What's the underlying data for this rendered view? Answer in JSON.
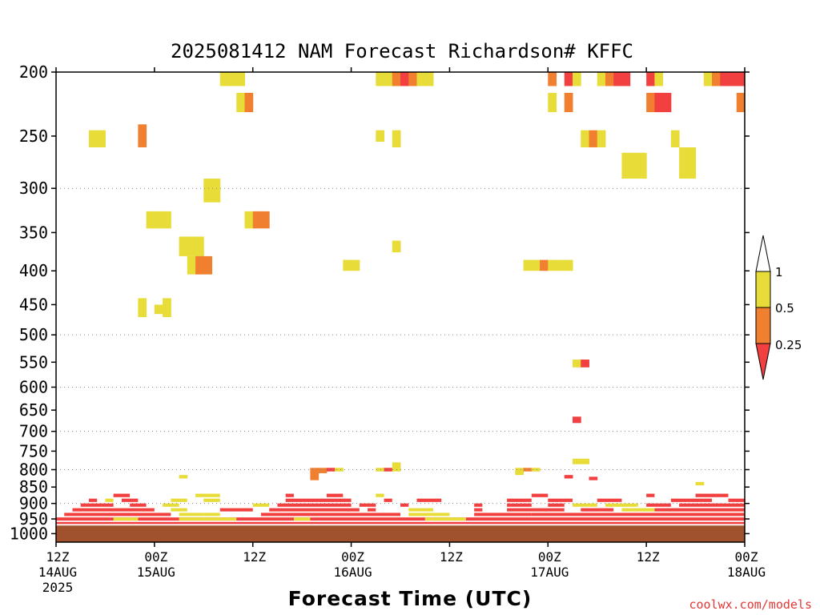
{
  "chart_data": {
    "type": "heatmap",
    "title": "2025081412 NAM Forecast Richardson# KFFC",
    "xlabel": "Forecast Time (UTC)",
    "ylabel": "",
    "x_range_hours": [
      0,
      84
    ],
    "y_scale": "log",
    "y_range_hPa": [
      200,
      1000
    ],
    "y_ticks": [
      200,
      250,
      300,
      350,
      400,
      450,
      500,
      550,
      600,
      650,
      700,
      750,
      800,
      850,
      900,
      950,
      1000
    ],
    "y_gridlines": [
      300,
      500,
      600,
      700,
      800,
      900
    ],
    "x_ticks": [
      {
        "hour": 0,
        "line1": "12Z",
        "line2": "14AUG",
        "line3": "2025"
      },
      {
        "hour": 12,
        "line1": "00Z",
        "line2": "15AUG",
        "line3": ""
      },
      {
        "hour": 24,
        "line1": "12Z",
        "line2": "",
        "line3": ""
      },
      {
        "hour": 36,
        "line1": "00Z",
        "line2": "16AUG",
        "line3": ""
      },
      {
        "hour": 48,
        "line1": "12Z",
        "line2": "",
        "line3": ""
      },
      {
        "hour": 60,
        "line1": "00Z",
        "line2": "17AUG",
        "line3": ""
      },
      {
        "hour": 72,
        "line1": "12Z",
        "line2": "",
        "line3": ""
      },
      {
        "hour": 84,
        "line1": "00Z",
        "line2": "18AUG",
        "line3": ""
      }
    ],
    "legend": {
      "placement": "right",
      "levels": [
        "1",
        "0.5",
        "0.25"
      ],
      "colors": {
        "above": "#ffffff",
        "c05_1": "#e8dc38",
        "c025_05": "#f08030",
        "below": "#f24040"
      }
    },
    "ground_color": "#a0522d",
    "cells": [
      {
        "t": 20,
        "p1": 200,
        "p2": 210,
        "c": "y"
      },
      {
        "t": 21,
        "p1": 200,
        "p2": 210,
        "c": "y"
      },
      {
        "t": 22,
        "p1": 200,
        "p2": 210,
        "c": "y"
      },
      {
        "t": 39,
        "p1": 200,
        "p2": 210,
        "c": "y"
      },
      {
        "t": 40,
        "p1": 200,
        "p2": 210,
        "c": "y"
      },
      {
        "t": 41,
        "p1": 200,
        "p2": 210,
        "c": "o"
      },
      {
        "t": 42,
        "p1": 200,
        "p2": 210,
        "c": "r"
      },
      {
        "t": 43,
        "p1": 200,
        "p2": 210,
        "c": "o"
      },
      {
        "t": 44,
        "p1": 200,
        "p2": 210,
        "c": "y"
      },
      {
        "t": 45,
        "p1": 200,
        "p2": 210,
        "c": "y"
      },
      {
        "t": 60,
        "p1": 200,
        "p2": 210,
        "c": "o"
      },
      {
        "t": 62,
        "p1": 200,
        "p2": 210,
        "c": "r"
      },
      {
        "t": 63,
        "p1": 200,
        "p2": 210,
        "c": "y"
      },
      {
        "t": 66,
        "p1": 200,
        "p2": 210,
        "c": "y"
      },
      {
        "t": 67,
        "p1": 200,
        "p2": 210,
        "c": "o"
      },
      {
        "t": 68,
        "p1": 200,
        "p2": 210,
        "c": "r"
      },
      {
        "t": 69,
        "p1": 200,
        "p2": 210,
        "c": "r"
      },
      {
        "t": 72,
        "p1": 200,
        "p2": 210,
        "c": "r"
      },
      {
        "t": 73,
        "p1": 200,
        "p2": 210,
        "c": "y"
      },
      {
        "t": 79,
        "p1": 200,
        "p2": 210,
        "c": "y"
      },
      {
        "t": 80,
        "p1": 200,
        "p2": 210,
        "c": "o"
      },
      {
        "t": 81,
        "p1": 200,
        "p2": 210,
        "c": "r"
      },
      {
        "t": 82,
        "p1": 200,
        "p2": 210,
        "c": "r"
      },
      {
        "t": 83,
        "p1": 200,
        "p2": 210,
        "c": "r"
      },
      {
        "t": 60,
        "p1": 215,
        "p2": 230,
        "c": "y"
      },
      {
        "t": 62,
        "p1": 215,
        "p2": 230,
        "c": "o"
      },
      {
        "t": 72,
        "p1": 215,
        "p2": 230,
        "c": "o"
      },
      {
        "t": 73,
        "p1": 215,
        "p2": 230,
        "c": "r"
      },
      {
        "t": 74,
        "p1": 215,
        "p2": 230,
        "c": "r"
      },
      {
        "t": 83,
        "p1": 215,
        "p2": 230,
        "c": "o"
      },
      {
        "t": 22,
        "p1": 215,
        "p2": 230,
        "c": "y"
      },
      {
        "t": 23,
        "p1": 215,
        "p2": 230,
        "c": "o"
      },
      {
        "t": 4,
        "p1": 245,
        "p2": 260,
        "c": "y"
      },
      {
        "t": 5,
        "p1": 245,
        "p2": 260,
        "c": "y"
      },
      {
        "t": 10,
        "p1": 240,
        "p2": 260,
        "c": "o"
      },
      {
        "t": 39,
        "p1": 245,
        "p2": 255,
        "c": "y"
      },
      {
        "t": 41,
        "p1": 245,
        "p2": 260,
        "c": "y"
      },
      {
        "t": 64,
        "p1": 245,
        "p2": 260,
        "c": "y"
      },
      {
        "t": 65,
        "p1": 245,
        "p2": 260,
        "c": "o"
      },
      {
        "t": 66,
        "p1": 245,
        "p2": 260,
        "c": "y"
      },
      {
        "t": 75,
        "p1": 245,
        "p2": 260,
        "c": "y"
      },
      {
        "t": 76,
        "p1": 260,
        "p2": 290,
        "c": "y"
      },
      {
        "t": 77,
        "p1": 260,
        "p2": 290,
        "c": "y"
      },
      {
        "t": 69,
        "p1": 265,
        "p2": 290,
        "c": "y"
      },
      {
        "t": 70,
        "p1": 265,
        "p2": 290,
        "c": "y"
      },
      {
        "t": 71,
        "p1": 265,
        "p2": 290,
        "c": "y"
      },
      {
        "t": 18,
        "p1": 290,
        "p2": 315,
        "c": "y"
      },
      {
        "t": 19,
        "p1": 290,
        "p2": 315,
        "c": "y"
      },
      {
        "t": 11,
        "p1": 325,
        "p2": 345,
        "c": "y"
      },
      {
        "t": 12,
        "p1": 325,
        "p2": 345,
        "c": "y"
      },
      {
        "t": 13,
        "p1": 325,
        "p2": 345,
        "c": "y"
      },
      {
        "t": 23,
        "p1": 325,
        "p2": 345,
        "c": "y"
      },
      {
        "t": 24,
        "p1": 325,
        "p2": 345,
        "c": "o"
      },
      {
        "t": 25,
        "p1": 325,
        "p2": 345,
        "c": "o"
      },
      {
        "t": 15,
        "p1": 355,
        "p2": 380,
        "c": "y"
      },
      {
        "t": 16,
        "p1": 355,
        "p2": 380,
        "c": "y"
      },
      {
        "t": 17,
        "p1": 355,
        "p2": 380,
        "c": "y"
      },
      {
        "t": 41,
        "p1": 360,
        "p2": 375,
        "c": "y"
      },
      {
        "t": 16,
        "p1": 380,
        "p2": 405,
        "c": "y"
      },
      {
        "t": 17,
        "p1": 380,
        "p2": 405,
        "c": "o"
      },
      {
        "t": 18,
        "p1": 380,
        "p2": 405,
        "c": "o"
      },
      {
        "t": 35,
        "p1": 385,
        "p2": 400,
        "c": "y"
      },
      {
        "t": 36,
        "p1": 385,
        "p2": 400,
        "c": "y"
      },
      {
        "t": 57,
        "p1": 385,
        "p2": 400,
        "c": "y"
      },
      {
        "t": 58,
        "p1": 385,
        "p2": 400,
        "c": "y"
      },
      {
        "t": 59,
        "p1": 385,
        "p2": 400,
        "c": "o"
      },
      {
        "t": 60,
        "p1": 385,
        "p2": 400,
        "c": "y"
      },
      {
        "t": 61,
        "p1": 385,
        "p2": 400,
        "c": "y"
      },
      {
        "t": 62,
        "p1": 385,
        "p2": 400,
        "c": "y"
      },
      {
        "t": 10,
        "p1": 440,
        "p2": 470,
        "c": "y"
      },
      {
        "t": 12,
        "p1": 450,
        "p2": 465,
        "c": "y"
      },
      {
        "t": 13,
        "p1": 440,
        "p2": 470,
        "c": "y"
      },
      {
        "t": 63,
        "p1": 545,
        "p2": 560,
        "c": "y"
      },
      {
        "t": 64,
        "p1": 545,
        "p2": 560,
        "c": "r"
      },
      {
        "t": 63,
        "p1": 665,
        "p2": 680,
        "c": "r"
      },
      {
        "t": 63,
        "p1": 770,
        "p2": 785,
        "c": "y"
      },
      {
        "t": 64,
        "p1": 770,
        "p2": 785,
        "c": "y"
      },
      {
        "t": 15,
        "p1": 815,
        "p2": 825,
        "c": "y"
      },
      {
        "t": 31,
        "p1": 795,
        "p2": 830,
        "c": "o"
      },
      {
        "t": 32,
        "p1": 795,
        "p2": 810,
        "c": "o"
      },
      {
        "t": 33,
        "p1": 795,
        "p2": 805,
        "c": "r"
      },
      {
        "t": 34,
        "p1": 795,
        "p2": 805,
        "c": "y"
      },
      {
        "t": 39,
        "p1": 795,
        "p2": 805,
        "c": "y"
      },
      {
        "t": 40,
        "p1": 795,
        "p2": 805,
        "c": "r"
      },
      {
        "t": 41,
        "p1": 780,
        "p2": 805,
        "c": "y"
      },
      {
        "t": 56,
        "p1": 795,
        "p2": 815,
        "c": "y"
      },
      {
        "t": 57,
        "p1": 795,
        "p2": 805,
        "c": "o"
      },
      {
        "t": 58,
        "p1": 795,
        "p2": 805,
        "c": "y"
      },
      {
        "t": 62,
        "p1": 815,
        "p2": 825,
        "c": "r"
      },
      {
        "t": 65,
        "p1": 820,
        "p2": 830,
        "c": "r"
      },
      {
        "t": 78,
        "p1": 835,
        "p2": 845,
        "c": "y"
      }
    ],
    "pbl_rows": [
      {
        "p1": 870,
        "p2": 885,
        "segs": [
          [
            28,
            29,
            "r"
          ],
          [
            33,
            35,
            "r"
          ],
          [
            39,
            40,
            "y"
          ],
          [
            58,
            60,
            "r"
          ],
          [
            72,
            73,
            "r"
          ],
          [
            78,
            82,
            "r"
          ],
          [
            17,
            20,
            "y"
          ],
          [
            7,
            9,
            "r"
          ]
        ]
      },
      {
        "p1": 885,
        "p2": 900,
        "segs": [
          [
            4,
            5,
            "r"
          ],
          [
            6,
            7,
            "y"
          ],
          [
            8,
            10,
            "r"
          ],
          [
            28,
            36,
            "r"
          ],
          [
            40,
            41,
            "r"
          ],
          [
            44,
            47,
            "r"
          ],
          [
            55,
            58,
            "r"
          ],
          [
            60,
            63,
            "r"
          ],
          [
            66,
            69,
            "r"
          ],
          [
            75,
            80,
            "r"
          ],
          [
            82,
            84,
            "r"
          ],
          [
            14,
            16,
            "y"
          ],
          [
            18,
            20,
            "y"
          ]
        ]
      },
      {
        "p1": 900,
        "p2": 915,
        "segs": [
          [
            3,
            7,
            "r"
          ],
          [
            9,
            11,
            "r"
          ],
          [
            13,
            15,
            "y"
          ],
          [
            27,
            36,
            "r"
          ],
          [
            37,
            39,
            "r"
          ],
          [
            42,
            43,
            "r"
          ],
          [
            51,
            52,
            "r"
          ],
          [
            55,
            58,
            "r"
          ],
          [
            60,
            62,
            "r"
          ],
          [
            63,
            66,
            "y"
          ],
          [
            67,
            71,
            "y"
          ],
          [
            72,
            75,
            "r"
          ],
          [
            76,
            84,
            "r"
          ],
          [
            24,
            26,
            "y"
          ]
        ]
      },
      {
        "p1": 915,
        "p2": 930,
        "segs": [
          [
            2,
            12,
            "r"
          ],
          [
            14,
            16,
            "y"
          ],
          [
            26,
            37,
            "r"
          ],
          [
            38,
            39,
            "r"
          ],
          [
            43,
            46,
            "y"
          ],
          [
            51,
            52,
            "r"
          ],
          [
            55,
            62,
            "r"
          ],
          [
            64,
            68,
            "r"
          ],
          [
            69,
            73,
            "y"
          ],
          [
            73,
            84,
            "r"
          ],
          [
            20,
            24,
            "r"
          ]
        ]
      },
      {
        "p1": 930,
        "p2": 945,
        "segs": [
          [
            1,
            14,
            "r"
          ],
          [
            15,
            18,
            "y"
          ],
          [
            25,
            42,
            "r"
          ],
          [
            43,
            48,
            "y"
          ],
          [
            51,
            58,
            "r"
          ],
          [
            58,
            84,
            "r"
          ],
          [
            18,
            20,
            "y"
          ]
        ]
      },
      {
        "p1": 945,
        "p2": 960,
        "segs": [
          [
            0,
            84,
            "r"
          ],
          [
            7,
            10,
            "y"
          ],
          [
            15,
            22,
            "y"
          ],
          [
            29,
            31,
            "y"
          ],
          [
            45,
            50,
            "y"
          ]
        ]
      },
      {
        "p1": 960,
        "p2": 970,
        "segs": [
          [
            0,
            84,
            "r"
          ]
        ]
      }
    ],
    "ground_p": [
      972,
      1015
    ]
  },
  "watermark": "coolwx.com/models"
}
